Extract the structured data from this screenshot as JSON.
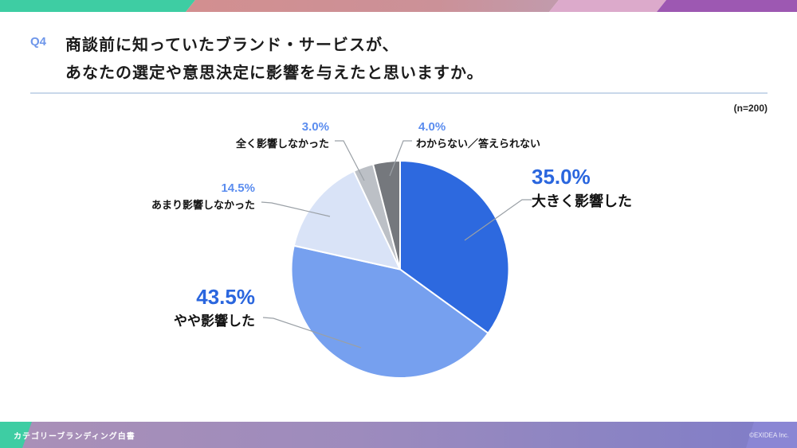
{
  "header": {
    "q_label": "Q4",
    "title_line1": "商談前に知っていたブランド・サービスが、",
    "title_line2": "あなたの選定や意思決定に影響を与えたと思いますか。",
    "sample_size": "(n=200)"
  },
  "chart_data": {
    "type": "pie",
    "title": "商談前に知っていたブランド・サービスが、あなたの選定や意思決定に影響を与えたと思いますか。",
    "sample_size": 200,
    "categories": [
      "大きく影響した",
      "やや影響した",
      "あまり影響しなかった",
      "全く影響しなかった",
      "わからない／答えられない"
    ],
    "values": [
      35.0,
      43.5,
      14.5,
      3.0,
      4.0
    ],
    "value_labels": [
      "35.0%",
      "43.5%",
      "14.5%",
      "3.0%",
      "4.0%"
    ],
    "colors": [
      "#2d69df",
      "#76a0ef",
      "#d9e3f7",
      "#bcc0c6",
      "#75787d"
    ],
    "start_angle_deg": 0,
    "direction": "clockwise",
    "legend_position": "callout-labels",
    "slice_border_color": "#ffffff"
  },
  "brand_colors": {
    "topbar_teal": "#3ecda3",
    "topbar_salmon": "#d28f90",
    "topbar_mauve": "#c29aab",
    "topbar_light_pink": "#dcaacb",
    "topbar_purple": "#9d58b2",
    "accent_blue_large": "#2a66de",
    "accent_blue_small": "#5b8def",
    "divider_blue": "#c9d8ea"
  },
  "footer": {
    "left_text": "カテゴリーブランディング白書",
    "right_text": "©EXIDEA Inc."
  }
}
